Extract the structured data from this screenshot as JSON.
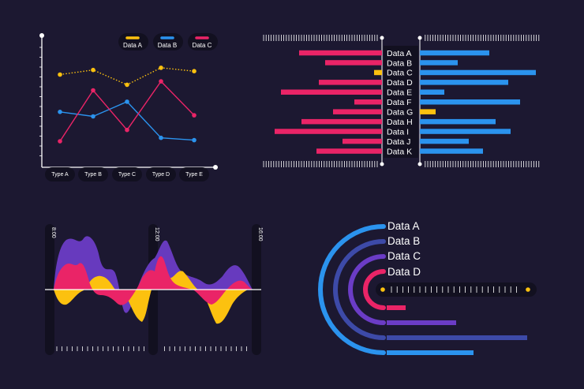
{
  "colors": {
    "background": "#1c1831",
    "yellow": "#fcc10f",
    "blue": "#2b93ee",
    "pink": "#ea2467",
    "purple": "#6b3cc6",
    "indigo": "#3d4aa8",
    "axis": "#ffffff",
    "pill": "#121020"
  },
  "chart_data": [
    {
      "type": "line",
      "categories": [
        "Type A",
        "Type B",
        "Type C",
        "Type D",
        "Type E"
      ],
      "series": [
        {
          "name": "Data A",
          "color": "#fcc10f",
          "style": "dotted",
          "values": [
            82,
            86,
            73,
            88,
            85
          ]
        },
        {
          "name": "Data B",
          "color": "#2b93ee",
          "style": "solid",
          "values": [
            49,
            45,
            58,
            26,
            24
          ]
        },
        {
          "name": "Data C",
          "color": "#ea2467",
          "style": "solid",
          "values": [
            23,
            68,
            33,
            76,
            46
          ]
        }
      ],
      "ylim": [
        0,
        120
      ],
      "legend": "top-right"
    },
    {
      "type": "bar",
      "orientation": "horizontal-diverging",
      "categories": [
        "Data A",
        "Data B",
        "Data C",
        "Data D",
        "Data E",
        "Data F",
        "Data G",
        "Data H",
        "Data I",
        "Data J",
        "Data K"
      ],
      "left": [
        105,
        72,
        10,
        80,
        128,
        35,
        62,
        102,
        136,
        50,
        83
      ],
      "left_colors": [
        "pink",
        "pink",
        "yellow",
        "pink",
        "pink",
        "pink",
        "pink",
        "pink",
        "pink",
        "pink",
        "pink"
      ],
      "right": [
        88,
        48,
        147,
        112,
        31,
        127,
        20,
        96,
        115,
        62,
        80
      ],
      "right_colors": [
        "blue",
        "blue",
        "blue",
        "blue",
        "blue",
        "blue",
        "yellow",
        "blue",
        "blue",
        "blue",
        "blue"
      ]
    },
    {
      "type": "area",
      "time_labels": [
        "8:00",
        "12:00",
        "16:00"
      ]
    },
    {
      "type": "bar",
      "variant": "radial-arcs",
      "categories": [
        "Data A",
        "Data B",
        "Data C",
        "Data D"
      ],
      "values": [
        110,
        178,
        88,
        24
      ],
      "colors": [
        "#2b93ee",
        "#3d4aa8",
        "#6b3cc6",
        "#ea2467"
      ]
    }
  ]
}
